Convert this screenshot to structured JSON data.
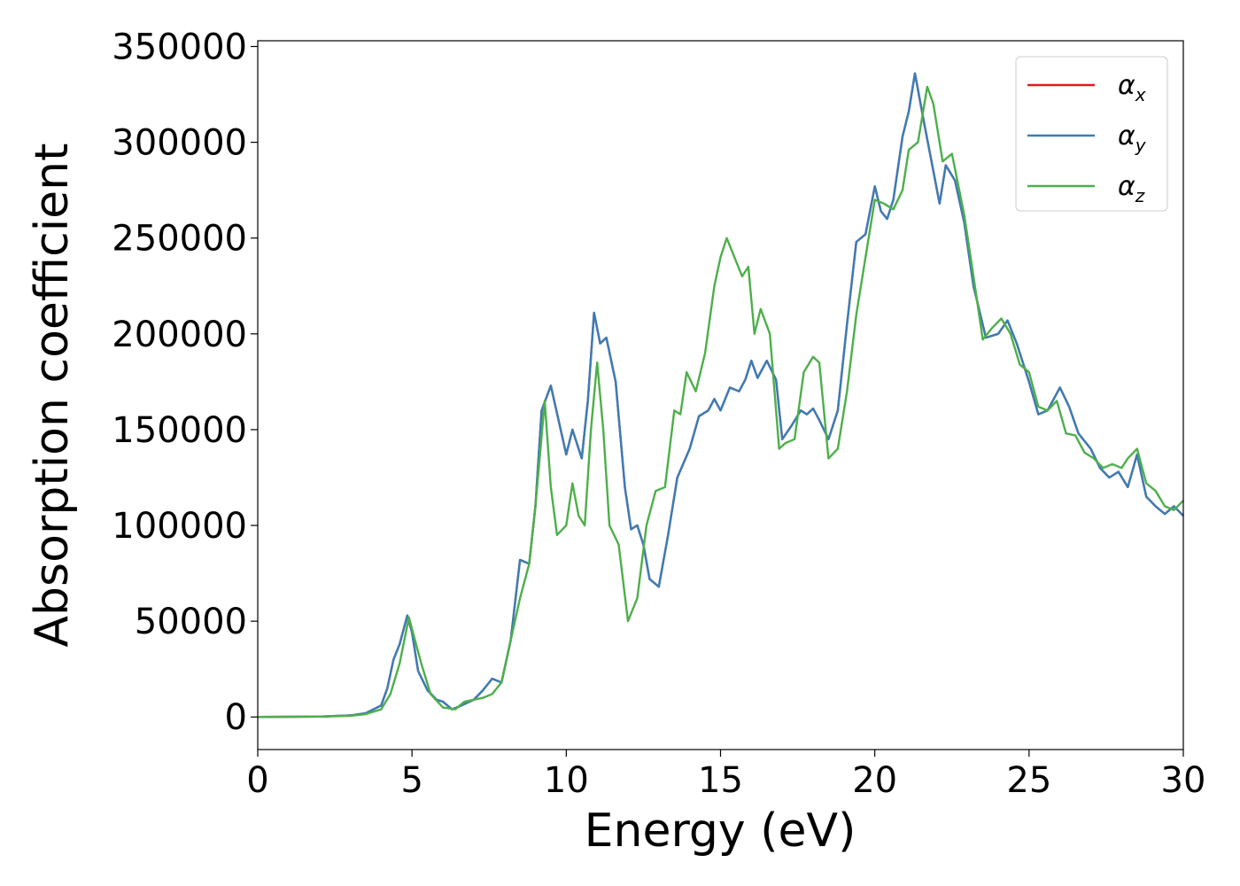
{
  "chart_data": {
    "type": "line",
    "xlabel": "Energy (eV)",
    "ylabel": "Absorption coefficient",
    "xlim": [
      0,
      30
    ],
    "ylim": [
      -17000,
      353000
    ],
    "xticks": [
      0,
      5,
      10,
      15,
      20,
      25,
      30
    ],
    "yticks": [
      0,
      50000,
      100000,
      150000,
      200000,
      250000,
      300000,
      350000
    ],
    "grid": false,
    "legend_position": "top-right",
    "series": [
      {
        "name": "α",
        "subscript": "x",
        "color": "#e41a1c",
        "x": [
          0,
          2,
          3,
          3.5,
          4,
          4.2,
          4.4,
          4.6,
          4.85,
          5.0,
          5.2,
          5.5,
          5.8,
          6.0,
          6.3,
          6.6,
          7.0,
          7.3,
          7.6,
          7.9,
          8.2,
          8.5,
          8.8,
          9.0,
          9.2,
          9.5,
          9.75,
          10.0,
          10.2,
          10.5,
          10.7,
          10.9,
          11.1,
          11.3,
          11.6,
          11.9,
          12.1,
          12.3,
          12.5,
          12.7,
          13.0,
          13.3,
          13.6,
          14.0,
          14.3,
          14.6,
          14.8,
          15.0,
          15.3,
          15.6,
          15.8,
          16.0,
          16.2,
          16.5,
          16.8,
          17.0,
          17.3,
          17.6,
          17.8,
          18.0,
          18.2,
          18.5,
          18.8,
          19.1,
          19.4,
          19.7,
          20.0,
          20.2,
          20.4,
          20.6,
          20.9,
          21.1,
          21.3,
          21.6,
          21.9,
          22.1,
          22.3,
          22.6,
          22.9,
          23.2,
          23.6,
          24.0,
          24.3,
          24.6,
          25.0,
          25.3,
          25.6,
          26.0,
          26.3,
          26.6,
          27.0,
          27.3,
          27.6,
          27.9,
          28.2,
          28.5,
          28.8,
          29.1,
          29.4,
          29.7,
          30.0
        ],
        "y": [
          0,
          200,
          800,
          2000,
          6000,
          15000,
          30000,
          38000,
          53000,
          44000,
          24000,
          14000,
          9000,
          8000,
          4000,
          6000,
          9000,
          14000,
          20000,
          18000,
          40000,
          82000,
          80000,
          110000,
          160000,
          173000,
          155000,
          137000,
          150000,
          135000,
          165000,
          211000,
          195000,
          198000,
          175000,
          120000,
          98000,
          100000,
          90000,
          72000,
          68000,
          95000,
          125000,
          140000,
          157000,
          160000,
          166000,
          160000,
          172000,
          170000,
          176000,
          186000,
          177000,
          186000,
          176000,
          145000,
          152000,
          160000,
          158000,
          161000,
          155000,
          145000,
          160000,
          205000,
          248000,
          252000,
          277000,
          264000,
          260000,
          270000,
          303000,
          316000,
          336000,
          310000,
          285000,
          268000,
          288000,
          280000,
          258000,
          225000,
          198000,
          200000,
          207000,
          195000,
          175000,
          158000,
          160000,
          172000,
          162000,
          148000,
          140000,
          130000,
          125000,
          128000,
          120000,
          137000,
          115000,
          110000,
          106000,
          110000,
          105000
        ]
      },
      {
        "name": "α",
        "subscript": "y",
        "color": "#377eb8",
        "x": [
          0,
          2,
          3,
          3.5,
          4,
          4.2,
          4.4,
          4.6,
          4.85,
          5.0,
          5.2,
          5.5,
          5.8,
          6.0,
          6.3,
          6.6,
          7.0,
          7.3,
          7.6,
          7.9,
          8.2,
          8.5,
          8.8,
          9.0,
          9.2,
          9.5,
          9.75,
          10.0,
          10.2,
          10.5,
          10.7,
          10.9,
          11.1,
          11.3,
          11.6,
          11.9,
          12.1,
          12.3,
          12.5,
          12.7,
          13.0,
          13.3,
          13.6,
          14.0,
          14.3,
          14.6,
          14.8,
          15.0,
          15.3,
          15.6,
          15.8,
          16.0,
          16.2,
          16.5,
          16.8,
          17.0,
          17.3,
          17.6,
          17.8,
          18.0,
          18.2,
          18.5,
          18.8,
          19.1,
          19.4,
          19.7,
          20.0,
          20.2,
          20.4,
          20.6,
          20.9,
          21.1,
          21.3,
          21.6,
          21.9,
          22.1,
          22.3,
          22.6,
          22.9,
          23.2,
          23.6,
          24.0,
          24.3,
          24.6,
          25.0,
          25.3,
          25.6,
          26.0,
          26.3,
          26.6,
          27.0,
          27.3,
          27.6,
          27.9,
          28.2,
          28.5,
          28.8,
          29.1,
          29.4,
          29.7,
          30.0
        ],
        "y": [
          0,
          200,
          800,
          2000,
          6000,
          15000,
          30000,
          38000,
          53000,
          44000,
          24000,
          14000,
          9000,
          8000,
          4000,
          6000,
          9000,
          14000,
          20000,
          18000,
          40000,
          82000,
          80000,
          110000,
          160000,
          173000,
          155000,
          137000,
          150000,
          135000,
          165000,
          211000,
          195000,
          198000,
          175000,
          120000,
          98000,
          100000,
          90000,
          72000,
          68000,
          95000,
          125000,
          140000,
          157000,
          160000,
          166000,
          160000,
          172000,
          170000,
          176000,
          186000,
          177000,
          186000,
          176000,
          145000,
          152000,
          160000,
          158000,
          161000,
          155000,
          145000,
          160000,
          205000,
          248000,
          252000,
          277000,
          264000,
          260000,
          270000,
          303000,
          316000,
          336000,
          310000,
          285000,
          268000,
          288000,
          280000,
          258000,
          225000,
          198000,
          200000,
          207000,
          195000,
          175000,
          158000,
          160000,
          172000,
          162000,
          148000,
          140000,
          130000,
          125000,
          128000,
          120000,
          137000,
          115000,
          110000,
          106000,
          110000,
          105000
        ]
      },
      {
        "name": "α",
        "subscript": "z",
        "color": "#4daf4a",
        "x": [
          0,
          2,
          3,
          3.5,
          4,
          4.3,
          4.6,
          4.9,
          5.1,
          5.3,
          5.6,
          6.0,
          6.4,
          6.7,
          7.0,
          7.3,
          7.6,
          7.9,
          8.2,
          8.5,
          8.8,
          9.0,
          9.3,
          9.5,
          9.7,
          10.0,
          10.2,
          10.4,
          10.6,
          10.8,
          11.0,
          11.2,
          11.4,
          11.7,
          12.0,
          12.3,
          12.6,
          12.9,
          13.2,
          13.5,
          13.7,
          13.9,
          14.2,
          14.5,
          14.8,
          15.0,
          15.2,
          15.5,
          15.7,
          15.9,
          16.1,
          16.3,
          16.6,
          16.9,
          17.1,
          17.4,
          17.7,
          18.0,
          18.2,
          18.5,
          18.8,
          19.1,
          19.4,
          19.7,
          20.0,
          20.3,
          20.6,
          20.9,
          21.1,
          21.4,
          21.7,
          21.9,
          22.2,
          22.5,
          22.9,
          23.2,
          23.5,
          23.8,
          24.1,
          24.4,
          24.7,
          25.0,
          25.3,
          25.6,
          25.9,
          26.2,
          26.5,
          26.8,
          27.1,
          27.4,
          27.7,
          28.0,
          28.2,
          28.5,
          28.8,
          29.1,
          29.4,
          29.7,
          30.0
        ],
        "y": [
          0,
          200,
          600,
          1500,
          4000,
          12000,
          28000,
          52000,
          40000,
          28000,
          12000,
          5000,
          4000,
          8000,
          9000,
          10000,
          12000,
          18000,
          40000,
          62000,
          80000,
          110000,
          165000,
          120000,
          95000,
          100000,
          122000,
          105000,
          100000,
          150000,
          185000,
          150000,
          100000,
          90000,
          50000,
          62000,
          100000,
          118000,
          120000,
          160000,
          158000,
          180000,
          170000,
          190000,
          225000,
          240000,
          250000,
          238000,
          230000,
          235000,
          200000,
          213000,
          200000,
          140000,
          143000,
          145000,
          180000,
          188000,
          185000,
          135000,
          140000,
          170000,
          210000,
          240000,
          270000,
          268000,
          265000,
          275000,
          296000,
          300000,
          329000,
          320000,
          290000,
          294000,
          262000,
          230000,
          197000,
          203000,
          208000,
          200000,
          184000,
          180000,
          162000,
          160000,
          165000,
          148000,
          147000,
          138000,
          135000,
          130000,
          132000,
          130000,
          135000,
          140000,
          122000,
          118000,
          110000,
          108000,
          113000
        ]
      }
    ]
  }
}
